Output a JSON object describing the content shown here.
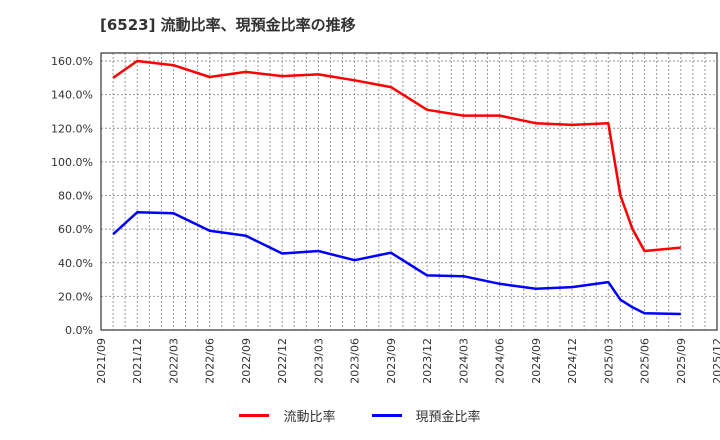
{
  "title": "[6523]  流動比率、現預金比率の推移",
  "legend": [
    {
      "label": "流動比率",
      "color": "#ff0000"
    },
    {
      "label": "現預金比率",
      "color": "#0000ff"
    }
  ],
  "chart_data": {
    "type": "line",
    "title": "[6523]  流動比率、現預金比率の推移",
    "xlabel": "",
    "ylabel": "",
    "ylim": [
      0,
      165
    ],
    "yticks": [
      "0.0%",
      "20.0%",
      "40.0%",
      "60.0%",
      "80.0%",
      "100.0%",
      "120.0%",
      "140.0%",
      "160.0%"
    ],
    "xticks": [
      "2021/09",
      "2021/12",
      "2022/03",
      "2022/06",
      "2022/09",
      "2022/12",
      "2023/03",
      "2023/06",
      "2023/09",
      "2023/12",
      "2024/03",
      "2024/06",
      "2024/09",
      "2024/12",
      "2025/03",
      "2025/06",
      "2025/09",
      "2025/12"
    ],
    "grid": true,
    "legend_position": "bottom",
    "x": [
      "2021/10",
      "2021/12",
      "2022/03",
      "2022/06",
      "2022/09",
      "2022/12",
      "2023/03",
      "2023/06",
      "2023/09",
      "2023/12",
      "2024/03",
      "2024/06",
      "2024/09",
      "2024/12",
      "2025/03",
      "2025/04",
      "2025/05",
      "2025/06",
      "2025/09"
    ],
    "x_month_index": [
      1,
      3,
      6,
      9,
      12,
      15,
      18,
      21,
      24,
      27,
      30,
      33,
      36,
      39,
      42,
      43,
      44,
      45,
      48
    ],
    "series": [
      {
        "name": "流動比率",
        "color": "#ff0000",
        "values": [
          150.0,
          160.0,
          157.5,
          150.5,
          153.5,
          151.0,
          152.0,
          148.5,
          144.5,
          131.0,
          127.5,
          127.5,
          123.0,
          122.0,
          123.0,
          80.0,
          60.0,
          47.0,
          49.0
        ]
      },
      {
        "name": "現預金比率",
        "color": "#0000ff",
        "values": [
          57.0,
          70.0,
          69.5,
          59.0,
          56.0,
          45.5,
          47.0,
          41.5,
          46.0,
          32.5,
          32.0,
          27.5,
          24.5,
          25.5,
          28.5,
          18.0,
          13.5,
          10.0,
          9.5
        ]
      }
    ]
  }
}
